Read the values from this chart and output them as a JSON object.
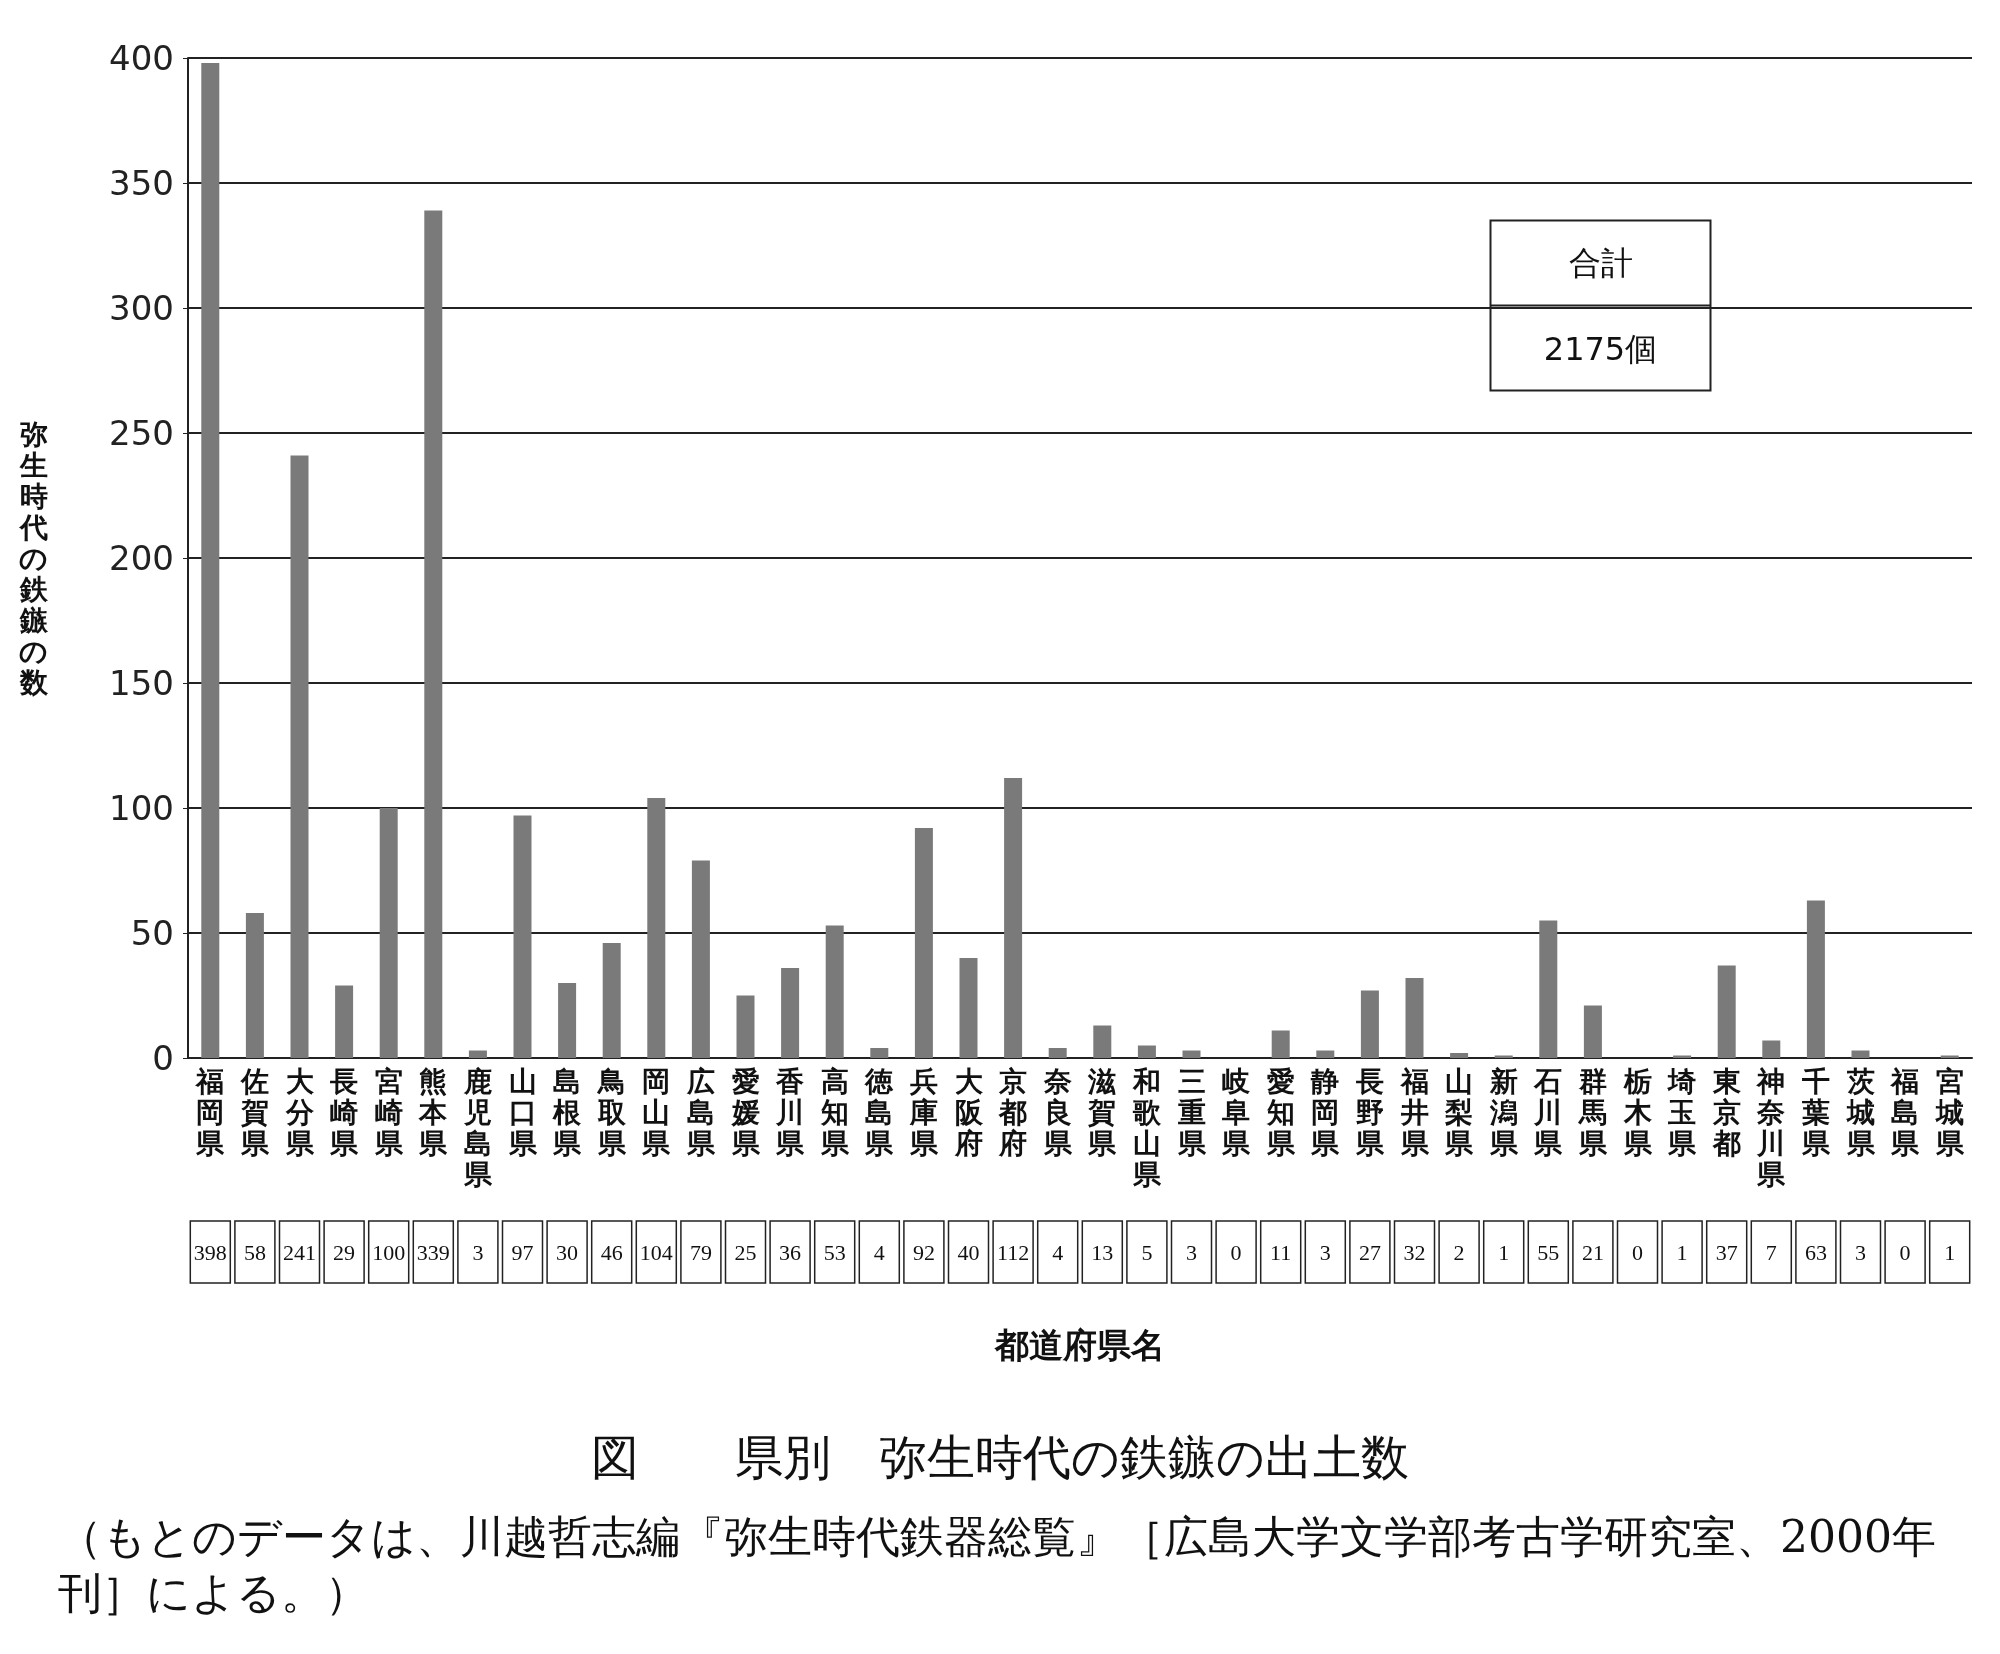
{
  "chart_data": {
    "type": "bar",
    "title": "図　　県別　弥生時代の鉄鏃の出土数",
    "xlabel": "都道府県名",
    "ylabel": "弥生時代の鉄鏃の数",
    "categories": [
      "福岡県",
      "佐賀県",
      "大分県",
      "長崎県",
      "宮崎県",
      "熊本県",
      "鹿児島県",
      "山口県",
      "島根県",
      "鳥取県",
      "岡山県",
      "広島県",
      "愛媛県",
      "香川県",
      "高知県",
      "徳島県",
      "兵庫県",
      "大阪府",
      "京都府",
      "奈良県",
      "滋賀県",
      "和歌山県",
      "三重県",
      "岐阜県",
      "愛知県",
      "静岡県",
      "長野県",
      "福井県",
      "山梨県",
      "新潟県",
      "石川県",
      "群馬県",
      "栃木県",
      "埼玉県",
      "東京都",
      "神奈川県",
      "千葉県",
      "茨城県",
      "福島県",
      "宮城県"
    ],
    "values": [
      398,
      58,
      241,
      29,
      100,
      339,
      3,
      97,
      30,
      46,
      104,
      79,
      25,
      36,
      53,
      4,
      92,
      40,
      112,
      4,
      13,
      5,
      3,
      0,
      11,
      3,
      27,
      32,
      2,
      1,
      55,
      21,
      0,
      1,
      37,
      7,
      63,
      3,
      0,
      1
    ],
    "color": "#7a7a7a",
    "ylim": [
      0,
      400
    ],
    "yticks": [
      0,
      50,
      100,
      150,
      200,
      250,
      300,
      350,
      400
    ],
    "grid": "y",
    "data_labels": true,
    "annotations": [
      "合計",
      "2175個",
      "（もとのデータは、川越哲志編『弥生時代鉄器総覧』［広島大学文学部考古学研究室、2000年刊］による。）"
    ]
  }
}
